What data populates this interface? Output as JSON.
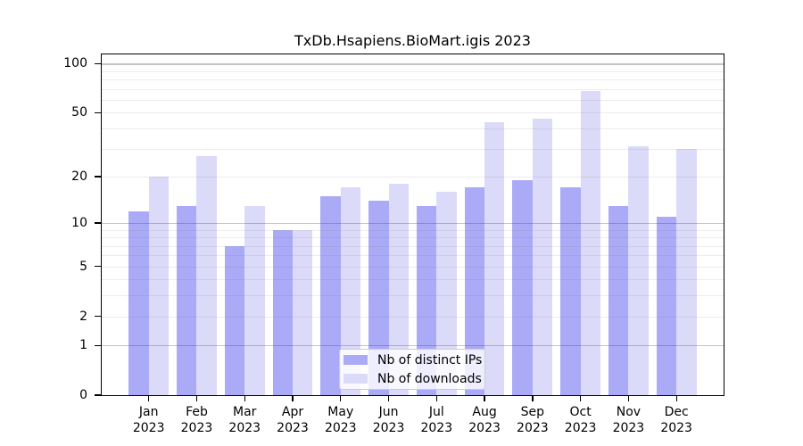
{
  "chart_data": {
    "type": "bar",
    "title": "TxDb.Hsapiens.BioMart.igis 2023",
    "categories": [
      "Jan",
      "Feb",
      "Mar",
      "Apr",
      "May",
      "Jun",
      "Jul",
      "Aug",
      "Sep",
      "Oct",
      "Nov",
      "Dec"
    ],
    "year": "2023",
    "series": [
      {
        "name": "Nb of distinct IPs",
        "color": "#aaaaf7",
        "values": [
          12,
          13,
          7,
          9,
          15,
          14,
          13,
          17,
          19,
          17,
          13,
          11
        ]
      },
      {
        "name": "Nb of downloads",
        "color": "#dbdbf9",
        "values": [
          20,
          27,
          13,
          9,
          17,
          18,
          16,
          44,
          46,
          68,
          31,
          30
        ]
      }
    ],
    "yscale": "log10(1+x)",
    "ylim": [
      0,
      114
    ],
    "y_ticks": [
      0,
      1,
      2,
      5,
      10,
      20,
      50,
      100
    ],
    "gridlines_major": [
      1,
      10,
      100
    ],
    "gridlines_minor": [
      2,
      3,
      4,
      5,
      6,
      7,
      8,
      9,
      20,
      30,
      40,
      50,
      60,
      70,
      80,
      90
    ],
    "grid": true,
    "legend_position": "bottom-center",
    "frame_color": "#000000",
    "background_color": "#ffffff"
  }
}
